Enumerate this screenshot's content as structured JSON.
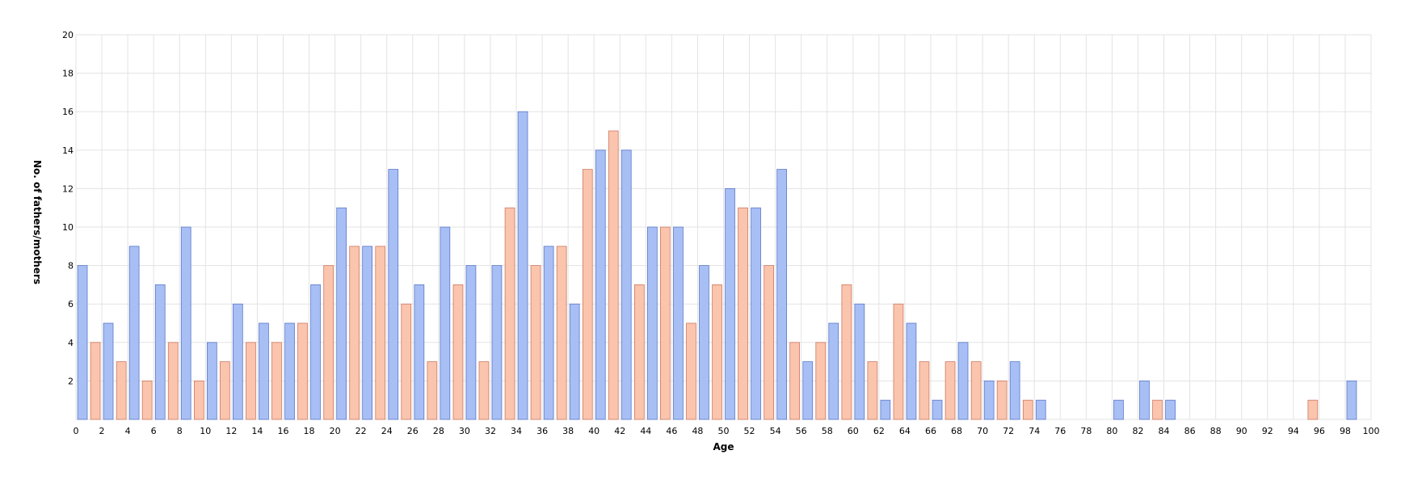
{
  "chart_data": {
    "type": "bar",
    "xlabel": "Age",
    "ylabel": "No. of fathers/mothers",
    "xlim": [
      0,
      100
    ],
    "ylim": [
      0,
      20
    ],
    "x_ticks": [
      0,
      2,
      4,
      6,
      8,
      10,
      12,
      14,
      16,
      18,
      20,
      22,
      24,
      26,
      28,
      30,
      32,
      34,
      36,
      38,
      40,
      42,
      44,
      46,
      48,
      50,
      52,
      54,
      56,
      58,
      60,
      62,
      64,
      66,
      68,
      70,
      72,
      74,
      76,
      78,
      80,
      82,
      84,
      86,
      88,
      90,
      92,
      94,
      96,
      98,
      100
    ],
    "y_ticks": [
      2,
      4,
      6,
      8,
      10,
      12,
      14,
      16,
      18,
      20
    ],
    "grid": true,
    "series": [
      {
        "color": "#a8bff5",
        "stroke": "#5a78c8",
        "points": [
          {
            "x": 0,
            "y": 8
          },
          {
            "x": 2,
            "y": 5
          },
          {
            "x": 4,
            "y": 9
          },
          {
            "x": 6,
            "y": 7
          },
          {
            "x": 8,
            "y": 10
          },
          {
            "x": 10,
            "y": 4
          },
          {
            "x": 12,
            "y": 6
          },
          {
            "x": 14,
            "y": 5
          },
          {
            "x": 16,
            "y": 5
          },
          {
            "x": 18,
            "y": 7
          },
          {
            "x": 20,
            "y": 11
          },
          {
            "x": 22,
            "y": 9
          },
          {
            "x": 24,
            "y": 13
          },
          {
            "x": 26,
            "y": 7
          },
          {
            "x": 28,
            "y": 10
          },
          {
            "x": 30,
            "y": 8
          },
          {
            "x": 32,
            "y": 8
          },
          {
            "x": 34,
            "y": 16
          },
          {
            "x": 36,
            "y": 9
          },
          {
            "x": 38,
            "y": 6
          },
          {
            "x": 40,
            "y": 14
          },
          {
            "x": 42,
            "y": 14
          },
          {
            "x": 44,
            "y": 10
          },
          {
            "x": 46,
            "y": 10
          },
          {
            "x": 48,
            "y": 8
          },
          {
            "x": 50,
            "y": 12
          },
          {
            "x": 52,
            "y": 11
          },
          {
            "x": 54,
            "y": 13
          },
          {
            "x": 56,
            "y": 3
          },
          {
            "x": 58,
            "y": 5
          },
          {
            "x": 60,
            "y": 6
          },
          {
            "x": 62,
            "y": 1
          },
          {
            "x": 64,
            "y": 5
          },
          {
            "x": 66,
            "y": 1
          },
          {
            "x": 68,
            "y": 4
          },
          {
            "x": 70,
            "y": 2
          },
          {
            "x": 72,
            "y": 3
          },
          {
            "x": 74,
            "y": 1
          },
          {
            "x": 80,
            "y": 1
          },
          {
            "x": 82,
            "y": 2
          },
          {
            "x": 84,
            "y": 1
          },
          {
            "x": 98,
            "y": 2
          }
        ]
      },
      {
        "color": "#fbc4ad",
        "stroke": "#cc7a63",
        "points": [
          {
            "x": 1,
            "y": 4
          },
          {
            "x": 3,
            "y": 3
          },
          {
            "x": 5,
            "y": 2
          },
          {
            "x": 7,
            "y": 4
          },
          {
            "x": 9,
            "y": 2
          },
          {
            "x": 11,
            "y": 3
          },
          {
            "x": 13,
            "y": 4
          },
          {
            "x": 15,
            "y": 4
          },
          {
            "x": 17,
            "y": 5
          },
          {
            "x": 19,
            "y": 8
          },
          {
            "x": 21,
            "y": 9
          },
          {
            "x": 23,
            "y": 9
          },
          {
            "x": 25,
            "y": 6
          },
          {
            "x": 27,
            "y": 3
          },
          {
            "x": 29,
            "y": 7
          },
          {
            "x": 31,
            "y": 3
          },
          {
            "x": 33,
            "y": 11
          },
          {
            "x": 35,
            "y": 8
          },
          {
            "x": 37,
            "y": 9
          },
          {
            "x": 39,
            "y": 13
          },
          {
            "x": 41,
            "y": 15
          },
          {
            "x": 43,
            "y": 7
          },
          {
            "x": 45,
            "y": 10
          },
          {
            "x": 47,
            "y": 5
          },
          {
            "x": 49,
            "y": 7
          },
          {
            "x": 51,
            "y": 11
          },
          {
            "x": 53,
            "y": 8
          },
          {
            "x": 55,
            "y": 4
          },
          {
            "x": 57,
            "y": 4
          },
          {
            "x": 59,
            "y": 7
          },
          {
            "x": 61,
            "y": 3
          },
          {
            "x": 63,
            "y": 6
          },
          {
            "x": 65,
            "y": 3
          },
          {
            "x": 67,
            "y": 3
          },
          {
            "x": 69,
            "y": 3
          },
          {
            "x": 71,
            "y": 2
          },
          {
            "x": 73,
            "y": 1
          },
          {
            "x": 83,
            "y": 1
          },
          {
            "x": 95,
            "y": 1
          }
        ]
      }
    ]
  }
}
